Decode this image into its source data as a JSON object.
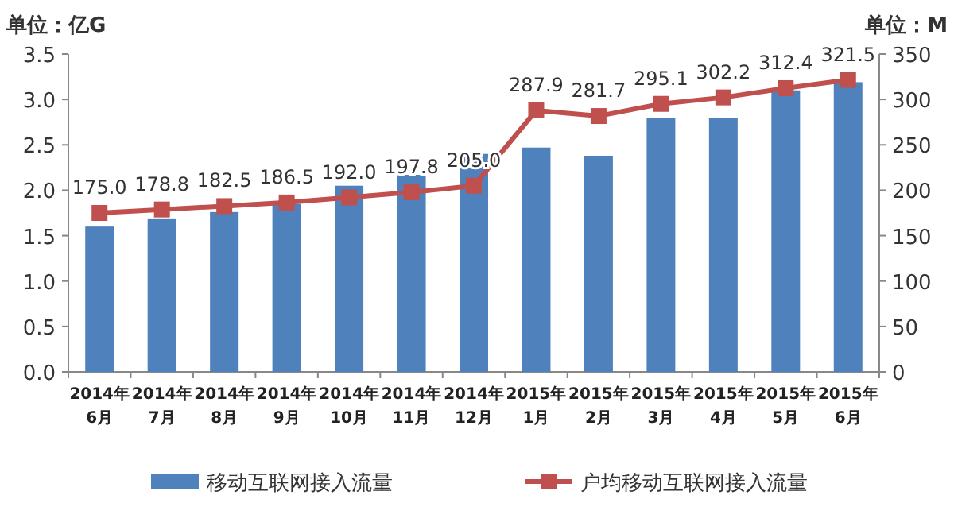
{
  "chart_data": {
    "type": "bar",
    "ylabel": "单位：亿G",
    "y2label": "单位：M",
    "categories": [
      "2014年\n6月",
      "2014年\n7月",
      "2014年\n8月",
      "2014年\n9月",
      "2014年\n10月",
      "2014年\n11月",
      "2014年\n12月",
      "2015年\n1月",
      "2015年\n2月",
      "2015年\n3月",
      "2015年\n4月",
      "2015年\n5月",
      "2015年\n6月"
    ],
    "series": [
      {
        "name": "移动互联网接入流量",
        "color": "#4f81bd",
        "values": [
          1.6,
          1.69,
          1.76,
          1.85,
          2.05,
          2.17,
          2.4,
          2.47,
          2.38,
          2.8,
          2.8,
          3.1,
          3.19
        ]
      },
      {
        "name": "户均移动互联网接入流量",
        "type": "line",
        "axis": "y2",
        "color": "#c0504d",
        "marker": "square",
        "values": [
          175.0,
          178.8,
          182.5,
          186.5,
          192.0,
          197.8,
          205.0,
          287.9,
          281.7,
          295.1,
          302.2,
          312.4,
          321.5
        ],
        "value_labels": [
          "175.0",
          "178.8",
          "182.5",
          "186.5",
          "192.0",
          "197.8",
          "205.0",
          "287.9",
          "281.7",
          "295.1",
          "302.2",
          "312.4",
          "321.5"
        ]
      }
    ],
    "ylim": [
      0,
      3.5
    ],
    "yticks": [
      {
        "value": 0,
        "label": "0.0"
      },
      {
        "value": 0.5,
        "label": "0.5"
      },
      {
        "value": 1,
        "label": "1.0"
      },
      {
        "value": 1.5,
        "label": "1.5"
      },
      {
        "value": 2,
        "label": "2.0"
      },
      {
        "value": 2.5,
        "label": "2.5"
      },
      {
        "value": 3,
        "label": "3.0"
      },
      {
        "value": 3.5,
        "label": "3.5"
      }
    ],
    "y2lim": [
      0,
      350
    ],
    "y2ticks": [
      0,
      50,
      100,
      150,
      200,
      250,
      300,
      350
    ],
    "grid": false,
    "legend": "bottom"
  }
}
